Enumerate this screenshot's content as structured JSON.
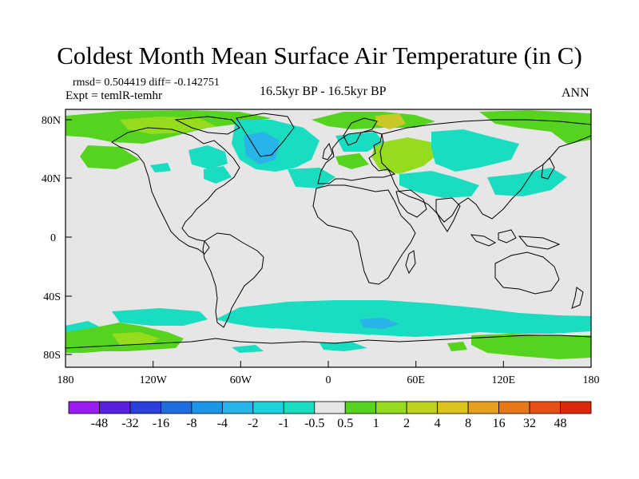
{
  "title": "Coldest Month Mean Surface Air Temperature (in C)",
  "stats": "rmsd= 0.504419  diff= -0.142751",
  "experiment": "Expt = temlR-temhr",
  "center_label": "16.5kyr BP - 16.5kyr BP",
  "season": "ANN",
  "lat_labels": [
    "80N",
    "40N",
    "0",
    "40S",
    "80S"
  ],
  "lon_labels": [
    "180",
    "120W",
    "60W",
    "0",
    "60E",
    "120E",
    "180"
  ],
  "colorbar": {
    "colors": [
      "#9a1cf0",
      "#5a20e0",
      "#2a40d8",
      "#1e6ce0",
      "#1e96e8",
      "#28b4e8",
      "#1ed2dc",
      "#19dcc0",
      "#e6e6e6",
      "#55d31e",
      "#96dc1e",
      "#bed21e",
      "#dcc31e",
      "#e6a01e",
      "#e67819",
      "#e65014",
      "#dc280a"
    ],
    "labels": [
      "-48",
      "-32",
      "-16",
      "-8",
      "-4",
      "-2",
      "-1",
      "-0.5",
      "0.5",
      "1",
      "2",
      "4",
      "8",
      "16",
      "32",
      "48"
    ]
  },
  "anomaly_colors": {
    "background": "#e6e6e6",
    "green": "#55d31e",
    "light_green": "#96dc1e",
    "yellow_green": "#bed21e",
    "olive": "#c8c828",
    "cyan": "#19dcc0",
    "teal": "#1ed2dc",
    "sky": "#28b4e8"
  }
}
